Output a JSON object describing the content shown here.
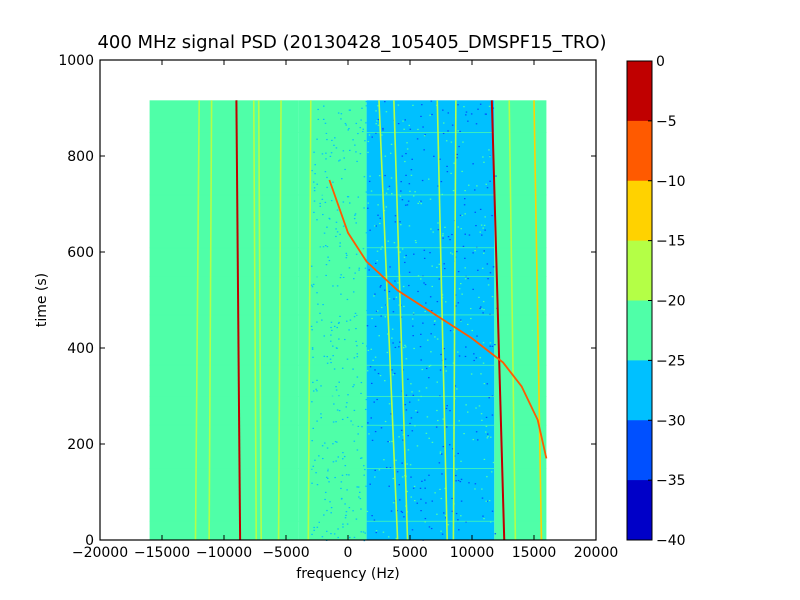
{
  "chart_data": {
    "type": "heatmap",
    "title": "400 MHz signal PSD (20130428_105405_DMSPF15_TRO)",
    "xlabel": "frequency (Hz)",
    "ylabel": "time (s)",
    "xlim": [
      -20000,
      20000
    ],
    "ylim": [
      0,
      1000
    ],
    "xticks": [
      -20000,
      -15000,
      -10000,
      -5000,
      0,
      5000,
      10000,
      15000,
      20000
    ],
    "xtick_labels": [
      "−20000",
      "−15000",
      "−10000",
      "−5000",
      "0",
      "5000",
      "10000",
      "15000",
      "20000"
    ],
    "yticks": [
      0,
      200,
      400,
      600,
      800,
      1000
    ],
    "ytick_labels": [
      "0",
      "200",
      "400",
      "600",
      "800",
      "1000"
    ],
    "data_extent": {
      "freq": [
        -16000,
        16000
      ],
      "time": [
        0,
        916
      ]
    },
    "background_levels": [
      {
        "freq": [
          -16000,
          -4000
        ],
        "level": -22.5
      },
      {
        "freq": [
          -4000,
          1500
        ],
        "level": -24
      },
      {
        "freq": [
          1500,
          11800
        ],
        "level": -27.5
      },
      {
        "freq": [
          11800,
          16000
        ],
        "level": -22.5
      }
    ],
    "steady_lines": [
      {
        "freq_top": -12000,
        "freq_bottom": -12300,
        "level": -17
      },
      {
        "freq_top": -11000,
        "freq_bottom": -11200,
        "level": -17
      },
      {
        "freq_top": -9000,
        "freq_bottom": -8700,
        "level": -3
      },
      {
        "freq_top": -7600,
        "freq_bottom": -7400,
        "level": -17
      },
      {
        "freq_top": -7200,
        "freq_bottom": -7000,
        "level": -17
      },
      {
        "freq_top": -5400,
        "freq_bottom": -5600,
        "level": -17
      },
      {
        "freq_top": -3000,
        "freq_bottom": -3200,
        "level": -17
      },
      {
        "freq_top": 2500,
        "freq_bottom": 4000,
        "level": -19
      },
      {
        "freq_top": 3700,
        "freq_bottom": 4800,
        "level": -17
      },
      {
        "freq_top": 7200,
        "freq_bottom": 8000,
        "level": -17
      },
      {
        "freq_top": 8700,
        "freq_bottom": 8500,
        "level": -17
      },
      {
        "freq_top": 11600,
        "freq_bottom": 12600,
        "level": -3
      },
      {
        "freq_top": 13000,
        "freq_bottom": 13500,
        "level": -17
      },
      {
        "freq_top": 15000,
        "freq_bottom": 15600,
        "level": -13
      }
    ],
    "doppler_curve": {
      "level": -10,
      "points": [
        [
          -1500,
          750
        ],
        [
          0,
          640
        ],
        [
          1500,
          580
        ],
        [
          4000,
          520
        ],
        [
          7000,
          470
        ],
        [
          10000,
          420
        ],
        [
          12500,
          370
        ],
        [
          14000,
          320
        ],
        [
          15300,
          250
        ],
        [
          16000,
          170
        ]
      ]
    },
    "colorbar": {
      "ticks": [
        0,
        -5,
        -10,
        -15,
        -20,
        -25,
        -30,
        -35,
        -40
      ],
      "tick_labels": [
        "0",
        "−5",
        "−10",
        "−15",
        "−20",
        "−25",
        "−30",
        "−35",
        "−40"
      ],
      "levels": [
        {
          "range": [
            -5,
            0
          ],
          "color": "#c00000"
        },
        {
          "range": [
            -10,
            -5
          ],
          "color": "#ff5a00"
        },
        {
          "range": [
            -15,
            -10
          ],
          "color": "#ffd200"
        },
        {
          "range": [
            -20,
            -15
          ],
          "color": "#b4ff46"
        },
        {
          "range": [
            -25,
            -20
          ],
          "color": "#4fffa8"
        },
        {
          "range": [
            -30,
            -25
          ],
          "color": "#00c0ff"
        },
        {
          "range": [
            -35,
            -30
          ],
          "color": "#0050ff"
        },
        {
          "range": [
            -40,
            -35
          ],
          "color": "#0000c8"
        }
      ]
    }
  }
}
